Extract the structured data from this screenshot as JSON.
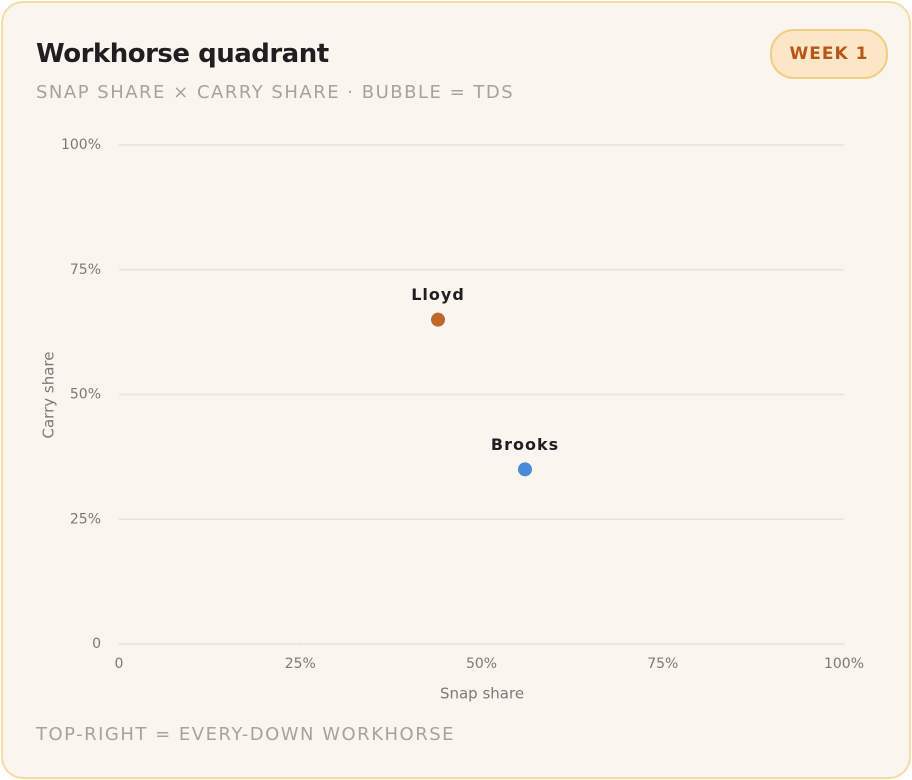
{
  "header": {
    "title": "Workhorse quadrant",
    "subtitle": "SNAP SHARE × CARRY SHARE · BUBBLE = TDS",
    "badge": "WEEK 1"
  },
  "chart_data": {
    "type": "bubble",
    "x_label": "Snap share",
    "y_label": "Carry share",
    "xlim": [
      0,
      100
    ],
    "ylim": [
      0,
      100
    ],
    "xticks": [
      0,
      {
        "value": 25,
        "label": "25%"
      },
      {
        "value": 50,
        "label": "50%"
      },
      {
        "value": 75,
        "label": "75%"
      },
      {
        "value": 100,
        "label": "100%"
      }
    ],
    "yticks": [
      0,
      {
        "value": 25,
        "label": "25%"
      },
      {
        "value": 50,
        "label": "50%"
      },
      {
        "value": 75,
        "label": "75%"
      },
      {
        "value": 100,
        "label": "100%"
      }
    ],
    "grid": true,
    "points": [
      {
        "name": "Lloyd",
        "x": 44,
        "y": 65,
        "size": 0,
        "color": "#c0672e"
      },
      {
        "name": "Brooks",
        "x": 56,
        "y": 35,
        "size": 0,
        "color": "#4a8ad8"
      }
    ]
  },
  "footer": {
    "note": "TOP-RIGHT = EVERY-DOWN WORKHORSE"
  }
}
